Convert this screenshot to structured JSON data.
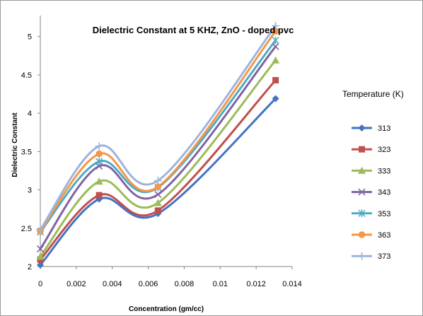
{
  "chart_data": {
    "type": "line",
    "title": "Dielectric Constant at 5 KHZ, ZnO -  doped pvc",
    "xlabel": "Concentration (gm/cc)",
    "ylabel": "Dielectric Constant",
    "xlim": [
      0,
      0.014
    ],
    "ylim": [
      2,
      5.2
    ],
    "x_ticks": [
      "0",
      "0.002",
      "0.004",
      "0.006",
      "0.008",
      "0.01",
      "0.012",
      "0.014"
    ],
    "y_ticks": [
      "2",
      "2.5",
      "3",
      "3.5",
      "4",
      "4.5",
      "5"
    ],
    "x": [
      0,
      0.00327,
      0.00654,
      0.01308
    ],
    "grid": false,
    "smooth": true,
    "legend": {
      "title": "Temperature  (K)",
      "placement": "right"
    },
    "series": [
      {
        "name": "313",
        "color": "#4472C4",
        "marker": "diamond",
        "values": [
          2.02,
          2.88,
          2.69,
          4.19
        ]
      },
      {
        "name": "323",
        "color": "#C0504D",
        "marker": "square",
        "values": [
          2.09,
          2.93,
          2.73,
          4.43
        ]
      },
      {
        "name": "333",
        "color": "#9BBB59",
        "marker": "triangle",
        "values": [
          2.13,
          3.11,
          2.83,
          4.69
        ]
      },
      {
        "name": "343",
        "color": "#8064A2",
        "marker": "x",
        "values": [
          2.23,
          3.31,
          2.94,
          4.87
        ]
      },
      {
        "name": "353",
        "color": "#4BACC6",
        "marker": "star",
        "values": [
          2.45,
          3.37,
          3.03,
          4.95
        ]
      },
      {
        "name": "363",
        "color": "#F79646",
        "marker": "circle",
        "values": [
          2.46,
          3.47,
          3.04,
          5.07
        ]
      },
      {
        "name": "373",
        "color": "#9CB4DE",
        "marker": "plus",
        "values": [
          2.48,
          3.57,
          3.12,
          5.14
        ]
      }
    ]
  }
}
